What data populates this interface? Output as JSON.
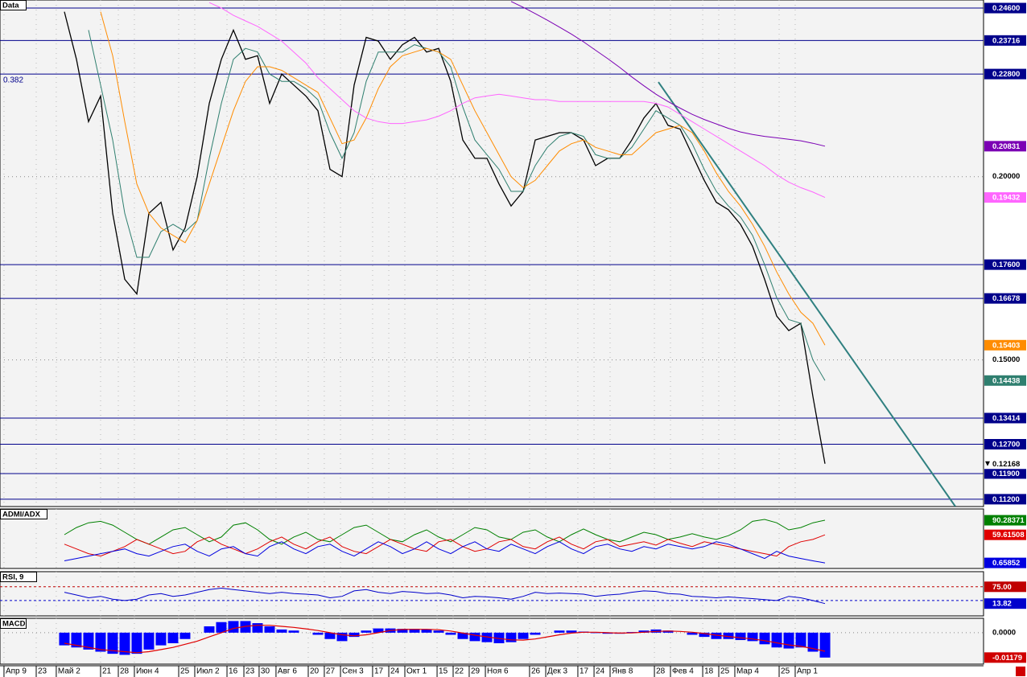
{
  "chart_data": [
    {
      "type": "line",
      "title": "Data",
      "annotation": "0.382",
      "xlim": [
        -5.33,
        76.13
      ],
      "ylim": [
        0.11,
        0.2482
      ],
      "xticks": [
        {
          "value": -5.0,
          "label": "Апр 9"
        },
        {
          "value": -2.33,
          "label": "23"
        },
        {
          "value": -0.67,
          "label": "Май 2"
        },
        {
          "value": 3.0,
          "label": "21"
        },
        {
          "value": 4.47,
          "label": "28"
        },
        {
          "value": 5.8,
          "label": "Июн 4"
        },
        {
          "value": 9.47,
          "label": "25"
        },
        {
          "value": 10.8,
          "label": "Июл 2"
        },
        {
          "value": 13.47,
          "label": "16"
        },
        {
          "value": 14.87,
          "label": "23"
        },
        {
          "value": 16.13,
          "label": "30"
        },
        {
          "value": 17.53,
          "label": "Авг 6"
        },
        {
          "value": 20.2,
          "label": "20"
        },
        {
          "value": 21.53,
          "label": "27"
        },
        {
          "value": 22.87,
          "label": "Сен 3"
        },
        {
          "value": 25.53,
          "label": "17"
        },
        {
          "value": 26.87,
          "label": "24"
        },
        {
          "value": 28.2,
          "label": "Окт 1"
        },
        {
          "value": 30.87,
          "label": "15"
        },
        {
          "value": 32.2,
          "label": "22"
        },
        {
          "value": 33.53,
          "label": "29"
        },
        {
          "value": 34.87,
          "label": "Ноя 6"
        },
        {
          "value": 38.53,
          "label": "26"
        },
        {
          "value": 39.87,
          "label": "Дек 3"
        },
        {
          "value": 42.53,
          "label": "17"
        },
        {
          "value": 43.87,
          "label": "24"
        },
        {
          "value": 45.2,
          "label": "Янв 8"
        },
        {
          "value": 48.87,
          "label": "28"
        },
        {
          "value": 50.2,
          "label": "Фев 4"
        },
        {
          "value": 52.87,
          "label": "18"
        },
        {
          "value": 54.2,
          "label": "25"
        },
        {
          "value": 55.53,
          "label": "Мар 4"
        },
        {
          "value": 59.2,
          "label": "25"
        },
        {
          "value": 60.53,
          "label": "Апр 1"
        }
      ],
      "yticks": [
        {
          "value": 0.2,
          "label": "0.20000"
        },
        {
          "value": 0.15,
          "label": "0.15000"
        }
      ],
      "hlines": [
        {
          "value": 0.246,
          "label": "0.24600"
        },
        {
          "value": 0.23716,
          "label": "0.23716"
        },
        {
          "value": 0.228,
          "label": "0.22800"
        },
        {
          "value": 0.176,
          "label": "0.17600"
        },
        {
          "value": 0.16678,
          "label": "0.16678"
        },
        {
          "value": 0.13414,
          "label": "0.13414"
        },
        {
          "value": 0.127,
          "label": "0.12700"
        },
        {
          "value": 0.119,
          "label": "0.11900"
        },
        {
          "value": 0.112,
          "label": "0.11200"
        }
      ],
      "hline_color": "#00008b",
      "trendline": {
        "x": [
          49.2,
          73.8
        ],
        "y": [
          0.2258,
          0.11
        ],
        "color": "#2f8080"
      },
      "series": [
        {
          "color": "#000000",
          "values": [
            0.245,
            0.232,
            0.215,
            0.222,
            0.19,
            0.172,
            0.168,
            0.19,
            0.193,
            0.18,
            0.186,
            0.2,
            0.22,
            0.232,
            0.24,
            0.232,
            0.233,
            0.22,
            0.228,
            0.225,
            0.222,
            0.218,
            0.202,
            0.2,
            0.225,
            0.238,
            0.237,
            0.232,
            0.236,
            0.238,
            0.234,
            0.235,
            0.226,
            0.21,
            0.205,
            0.205,
            0.198,
            0.192,
            0.196,
            0.21,
            0.211,
            0.212,
            0.212,
            0.21,
            0.203,
            0.205,
            0.205,
            0.21,
            0.216,
            0.22,
            0.214,
            0.213,
            0.206,
            0.199,
            0.193,
            0.191,
            0.187,
            0.181,
            0.172,
            0.162,
            0.158,
            0.16,
            0.14,
            0.12168
          ]
        },
        {
          "color": "#2f7f6f",
          "values": [
            null,
            null,
            0.24,
            0.225,
            0.21,
            0.19,
            0.178,
            0.178,
            0.185,
            0.187,
            0.185,
            0.188,
            0.205,
            0.22,
            0.232,
            0.235,
            0.234,
            0.228,
            0.226,
            0.226,
            0.224,
            0.221,
            0.212,
            0.205,
            0.212,
            0.226,
            0.234,
            0.234,
            0.234,
            0.236,
            0.235,
            0.234,
            0.23,
            0.219,
            0.21,
            0.206,
            0.202,
            0.196,
            0.196,
            0.203,
            0.208,
            0.211,
            0.212,
            0.211,
            0.206,
            0.205,
            0.205,
            0.208,
            0.213,
            0.218,
            0.216,
            0.214,
            0.209,
            0.202,
            0.196,
            0.192,
            0.189,
            0.184,
            0.176,
            0.167,
            0.161,
            0.16,
            0.15,
            0.14438
          ]
        },
        {
          "color": "#ff8c00",
          "values": [
            null,
            null,
            null,
            0.245,
            0.233,
            0.215,
            0.198,
            0.19,
            0.186,
            0.184,
            0.182,
            0.188,
            0.198,
            0.208,
            0.218,
            0.226,
            0.23,
            0.23,
            0.229,
            0.227,
            0.225,
            0.223,
            0.216,
            0.209,
            0.21,
            0.216,
            0.224,
            0.23,
            0.233,
            0.234,
            0.235,
            0.234,
            0.232,
            0.225,
            0.218,
            0.212,
            0.206,
            0.2,
            0.197,
            0.199,
            0.203,
            0.207,
            0.209,
            0.21,
            0.208,
            0.207,
            0.206,
            0.206,
            0.209,
            0.212,
            0.213,
            0.214,
            0.212,
            0.207,
            0.201,
            0.196,
            0.192,
            0.187,
            0.181,
            0.174,
            0.168,
            0.163,
            0.16,
            0.15403
          ]
        },
        {
          "color": "#ff66ff",
          "values": [
            null,
            null,
            null,
            null,
            null,
            null,
            null,
            null,
            null,
            null,
            null,
            null,
            0.2475,
            0.246,
            0.244,
            0.2425,
            0.241,
            0.239,
            0.237,
            0.234,
            0.231,
            0.227,
            0.224,
            0.221,
            0.218,
            0.216,
            0.215,
            0.2145,
            0.2145,
            0.215,
            0.2155,
            0.2165,
            0.218,
            0.22,
            0.2215,
            0.222,
            0.2225,
            0.222,
            0.2215,
            0.221,
            0.221,
            0.2205,
            0.2205,
            0.2205,
            0.2205,
            0.2205,
            0.2205,
            0.2205,
            0.2205,
            0.22,
            0.219,
            0.217,
            0.215,
            0.213,
            0.211,
            0.209,
            0.207,
            0.205,
            0.203,
            0.2005,
            0.1985,
            0.197,
            0.1958,
            0.19432
          ]
        },
        {
          "color": "#7b00b4",
          "values": [
            null,
            null,
            null,
            null,
            null,
            null,
            null,
            null,
            null,
            null,
            null,
            null,
            null,
            null,
            null,
            null,
            null,
            null,
            null,
            null,
            null,
            null,
            null,
            null,
            null,
            null,
            null,
            null,
            null,
            null,
            null,
            null,
            null,
            null,
            null,
            null,
            null,
            0.2478,
            0.2462,
            0.2445,
            0.2427,
            0.2408,
            0.2389,
            0.2368,
            0.2345,
            0.2322,
            0.2298,
            0.2272,
            0.2248,
            0.2225,
            0.2205,
            0.2187,
            0.217,
            0.2156,
            0.2144,
            0.2132,
            0.2122,
            0.2115,
            0.211,
            0.2106,
            0.2102,
            0.2098,
            0.2091,
            0.20831
          ]
        }
      ]
    },
    {
      "type": "line",
      "title": "ADMI/ADX",
      "ylim": [
        -11,
        114
      ],
      "series": [
        {
          "color": "#008000",
          "values": [
            60,
            75,
            85,
            88,
            80,
            65,
            50,
            40,
            55,
            70,
            75,
            60,
            45,
            55,
            80,
            85,
            70,
            50,
            40,
            55,
            65,
            50,
            45,
            60,
            75,
            80,
            65,
            50,
            45,
            60,
            70,
            55,
            45,
            60,
            75,
            70,
            55,
            50,
            65,
            70,
            55,
            45,
            60,
            72,
            60,
            50,
            45,
            55,
            65,
            60,
            50,
            55,
            62,
            55,
            50,
            58,
            70,
            88,
            92,
            85,
            70,
            75,
            85,
            90.28371
          ]
        },
        {
          "color": "#e00000",
          "values": [
            40,
            30,
            20,
            15,
            25,
            35,
            50,
            40,
            30,
            20,
            25,
            45,
            55,
            40,
            30,
            20,
            30,
            45,
            55,
            40,
            30,
            45,
            55,
            35,
            25,
            20,
            35,
            50,
            40,
            30,
            25,
            45,
            50,
            35,
            25,
            30,
            45,
            50,
            35,
            30,
            45,
            55,
            40,
            30,
            45,
            50,
            35,
            40,
            45,
            38,
            50,
            42,
            35,
            45,
            40,
            35,
            30,
            25,
            20,
            15,
            35,
            45,
            50,
            59.61508
          ]
        },
        {
          "color": "#0000e0",
          "values": [
            5,
            10,
            15,
            20,
            25,
            30,
            20,
            15,
            25,
            35,
            40,
            25,
            15,
            30,
            35,
            20,
            15,
            35,
            45,
            30,
            20,
            35,
            40,
            25,
            15,
            30,
            45,
            35,
            20,
            30,
            45,
            30,
            20,
            35,
            45,
            30,
            25,
            40,
            30,
            20,
            35,
            45,
            30,
            20,
            35,
            40,
            30,
            25,
            35,
            30,
            40,
            35,
            30,
            35,
            45,
            40,
            30,
            20,
            10,
            25,
            15,
            10,
            5,
            0.65852
          ]
        }
      ]
    },
    {
      "type": "line",
      "title": "RSI, 9",
      "ylim": [
        -31,
        130
      ],
      "levels": [
        {
          "value": 75,
          "label": "75.00",
          "color": "#c00000"
        }
      ],
      "ref_lines": [
        25
      ],
      "series": [
        {
          "color": "#0000cc",
          "values": [
            55,
            45,
            35,
            40,
            30,
            25,
            30,
            45,
            50,
            40,
            45,
            55,
            65,
            70,
            65,
            60,
            55,
            50,
            55,
            50,
            48,
            45,
            35,
            40,
            60,
            65,
            55,
            50,
            58,
            55,
            50,
            52,
            45,
            35,
            40,
            38,
            35,
            30,
            40,
            55,
            50,
            52,
            50,
            48,
            40,
            45,
            48,
            55,
            60,
            58,
            50,
            48,
            40,
            38,
            35,
            38,
            35,
            32,
            28,
            25,
            40,
            35,
            25,
            13.82
          ]
        }
      ]
    },
    {
      "type": "bar",
      "title": "MACD",
      "ylim": [
        -0.0149,
        0.0068
      ],
      "yticks": [
        {
          "value": 0,
          "label": "0.0000"
        }
      ],
      "color": "#0000ff",
      "label_color": "#d00000",
      "values": [
        -0.006,
        -0.007,
        -0.008,
        -0.009,
        -0.01,
        -0.0105,
        -0.01,
        -0.008,
        -0.006,
        -0.005,
        -0.003,
        0,
        0.003,
        0.005,
        0.0055,
        0.0055,
        0.0045,
        0.003,
        0.0015,
        0.001,
        0,
        -0.001,
        -0.003,
        -0.004,
        -0.002,
        0.001,
        0.002,
        0.002,
        0.0018,
        0.0018,
        0.0015,
        0.001,
        -0.001,
        -0.003,
        -0.004,
        -0.0045,
        -0.005,
        -0.0045,
        -0.003,
        -0.001,
        0,
        0.001,
        0.001,
        0.0005,
        -0.0002,
        -0.0005,
        -0.0005,
        0.0003,
        0.001,
        0.0015,
        0.001,
        0,
        -0.001,
        -0.002,
        -0.003,
        -0.003,
        -0.0035,
        -0.004,
        -0.0055,
        -0.007,
        -0.0075,
        -0.007,
        -0.009,
        -0.01179
      ],
      "signal": {
        "color": "#e00000",
        "values": [
          -0.005,
          -0.006,
          -0.007,
          -0.008,
          -0.0085,
          -0.009,
          -0.0095,
          -0.009,
          -0.008,
          -0.007,
          -0.0055,
          -0.004,
          -0.002,
          0,
          0.002,
          0.003,
          0.0035,
          0.0035,
          0.003,
          0.0025,
          0.0018,
          0.001,
          0,
          -0.001,
          -0.0015,
          -0.001,
          0,
          0.001,
          0.0015,
          0.0016,
          0.0016,
          0.0014,
          0.0008,
          -0.0002,
          -0.0012,
          -0.002,
          -0.0028,
          -0.0034,
          -0.0035,
          -0.003,
          -0.002,
          -0.001,
          -0.0002,
          0.0002,
          0.0002,
          0,
          -0.0002,
          -0.0001,
          0.0002,
          0.0006,
          0.0008,
          0.0006,
          0.0002,
          -0.0004,
          -0.0012,
          -0.0018,
          -0.0024,
          -0.003,
          -0.0038,
          -0.0048,
          -0.0058,
          -0.0065,
          -0.0075,
          -0.0088
        ]
      }
    }
  ]
}
